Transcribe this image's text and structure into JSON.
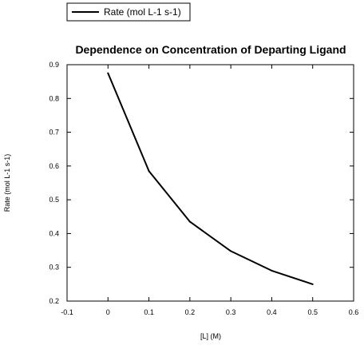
{
  "chart_data": {
    "type": "line",
    "title": "Dependence on Concentration of Departing Ligand",
    "xlabel": "[L]   (M)",
    "ylabel": "Rate (mol L-1 s-1)",
    "xlim": [
      -0.1,
      0.6
    ],
    "ylim": [
      0.2,
      0.9
    ],
    "x_ticks": [
      -0.1,
      0,
      0.1,
      0.2,
      0.3,
      0.4,
      0.5,
      0.6
    ],
    "y_ticks": [
      0.2,
      0.3,
      0.4,
      0.5,
      0.6,
      0.7,
      0.8,
      0.9
    ],
    "x_tick_labels": [
      "-0.1",
      "0",
      "0.1",
      "0.2",
      "0.3",
      "0.4",
      "0.5",
      "0.6"
    ],
    "y_tick_labels": [
      "0.2",
      "0.3",
      "0.4",
      "0.5",
      "0.6",
      "0.7",
      "0.8",
      "0.9"
    ],
    "grid": false,
    "legend_position": "top-left",
    "series": [
      {
        "name": "Rate (mol L-1 s-1)",
        "color": "#000000",
        "x": [
          0,
          0.1,
          0.2,
          0.3,
          0.4,
          0.5
        ],
        "y": [
          0.875,
          0.585,
          0.435,
          0.348,
          0.29,
          0.25
        ]
      }
    ]
  }
}
